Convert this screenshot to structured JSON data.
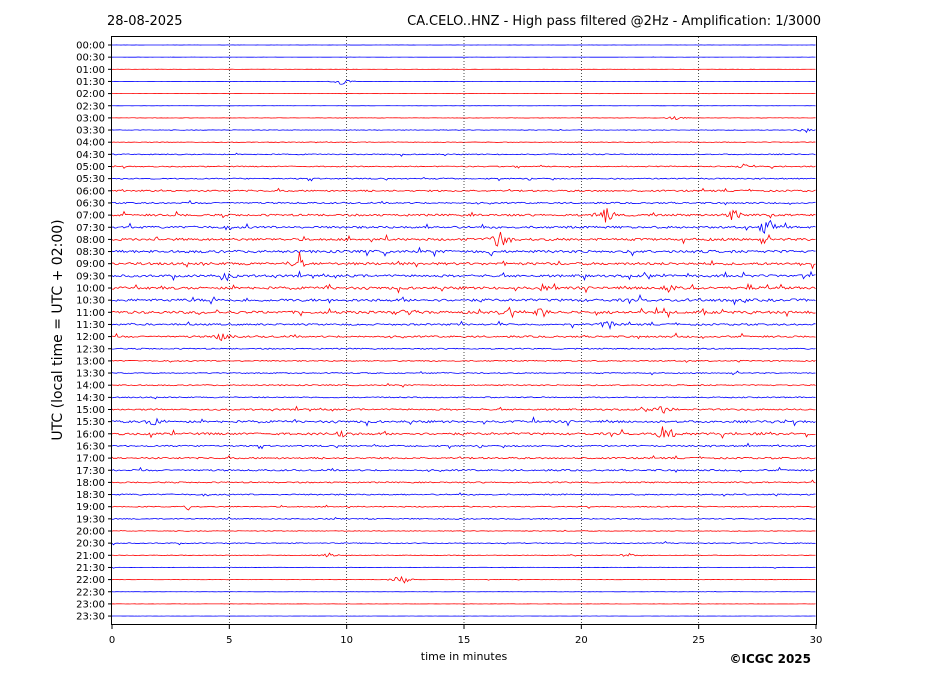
{
  "header": {
    "date": "28-08-2025",
    "title": "CA.CELO..HNZ - High pass filtered @2Hz - Amplification: 1/3000"
  },
  "copyright": "©ICGC 2025",
  "colors": {
    "odd_trace": "#ff0000",
    "even_trace": "#0000ff",
    "grid": "#000000"
  },
  "chart_data": {
    "type": "line",
    "title": "CA.CELO..HNZ - High pass filtered @2Hz - Amplification: 1/3000",
    "xlabel": "time in minutes",
    "ylabel": "UTC (local time = UTC + 02:00)",
    "xlim": [
      0,
      30
    ],
    "x_ticks": [
      "0",
      "5",
      "10",
      "15",
      "20",
      "25",
      "30"
    ],
    "vertical_gridlines_at": [
      5,
      10,
      15,
      20,
      25
    ],
    "row_labels": [
      "00:00",
      "00:30",
      "01:00",
      "01:30",
      "02:00",
      "02:30",
      "03:00",
      "03:30",
      "04:00",
      "04:30",
      "05:00",
      "05:30",
      "06:00",
      "06:30",
      "07:00",
      "07:30",
      "08:00",
      "08:30",
      "09:00",
      "09:30",
      "10:00",
      "10:30",
      "11:00",
      "11:30",
      "12:00",
      "12:30",
      "13:00",
      "13:30",
      "14:00",
      "14:30",
      "15:00",
      "15:30",
      "16:00",
      "16:30",
      "17:00",
      "17:30",
      "18:00",
      "18:30",
      "19:00",
      "19:30",
      "20:00",
      "20:30",
      "21:00",
      "21:30",
      "22:00",
      "22:30",
      "23:00",
      "23:30"
    ],
    "row_colors": [
      "blue",
      "blue",
      "red",
      "blue",
      "red",
      "blue",
      "red",
      "blue",
      "red",
      "blue",
      "red",
      "blue",
      "red",
      "blue",
      "red",
      "blue",
      "red",
      "blue",
      "red",
      "blue",
      "red",
      "blue",
      "red",
      "blue",
      "red",
      "blue",
      "red",
      "blue",
      "red",
      "blue",
      "red",
      "blue",
      "red",
      "blue",
      "red",
      "blue",
      "red",
      "blue",
      "red",
      "blue",
      "red",
      "blue",
      "red",
      "blue",
      "red",
      "blue",
      "red",
      "blue"
    ],
    "row_noise_level": [
      0.05,
      0.05,
      0.08,
      0.08,
      0.05,
      0.05,
      0.12,
      0.2,
      0.2,
      0.35,
      0.35,
      0.4,
      0.55,
      0.5,
      0.7,
      0.75,
      0.8,
      0.9,
      0.85,
      0.8,
      0.85,
      0.9,
      0.9,
      0.6,
      0.6,
      0.4,
      0.4,
      0.35,
      0.4,
      0.4,
      0.55,
      0.75,
      0.75,
      0.5,
      0.55,
      0.55,
      0.45,
      0.45,
      0.35,
      0.35,
      0.25,
      0.3,
      0.2,
      0.15,
      0.12,
      0.08,
      0.08,
      0.06
    ],
    "events": [
      {
        "row": 3,
        "minute": 9.8,
        "amp": 1.0
      },
      {
        "row": 6,
        "minute": 24.0,
        "amp": 0.8
      },
      {
        "row": 7,
        "minute": 29.5,
        "amp": 0.7
      },
      {
        "row": 10,
        "minute": 27.0,
        "amp": 1.0
      },
      {
        "row": 14,
        "minute": 21.0,
        "amp": 2.5
      },
      {
        "row": 14,
        "minute": 26.5,
        "amp": 1.8
      },
      {
        "row": 15,
        "minute": 28.0,
        "amp": 3.0
      },
      {
        "row": 16,
        "minute": 16.5,
        "amp": 3.5
      },
      {
        "row": 18,
        "minute": 8.0,
        "amp": 3.0
      },
      {
        "row": 19,
        "minute": 4.8,
        "amp": 1.5
      },
      {
        "row": 20,
        "minute": 18.5,
        "amp": 1.6
      },
      {
        "row": 20,
        "minute": 23.8,
        "amp": 1.8
      },
      {
        "row": 22,
        "minute": 12.5,
        "amp": 1.4
      },
      {
        "row": 22,
        "minute": 17.0,
        "amp": 2.0
      },
      {
        "row": 22,
        "minute": 18.3,
        "amp": 1.8
      },
      {
        "row": 23,
        "minute": 21.2,
        "amp": 1.2
      },
      {
        "row": 24,
        "minute": 4.7,
        "amp": 1.2
      },
      {
        "row": 30,
        "minute": 23.5,
        "amp": 1.6
      },
      {
        "row": 31,
        "minute": 1.8,
        "amp": 1.4
      },
      {
        "row": 32,
        "minute": 23.6,
        "amp": 3.0
      },
      {
        "row": 32,
        "minute": 9.8,
        "amp": 1.2
      },
      {
        "row": 38,
        "minute": 3.3,
        "amp": 1.0
      },
      {
        "row": 42,
        "minute": 9.3,
        "amp": 0.8
      },
      {
        "row": 42,
        "minute": 22.0,
        "amp": 0.7
      },
      {
        "row": 44,
        "minute": 12.3,
        "amp": 1.6
      }
    ]
  }
}
